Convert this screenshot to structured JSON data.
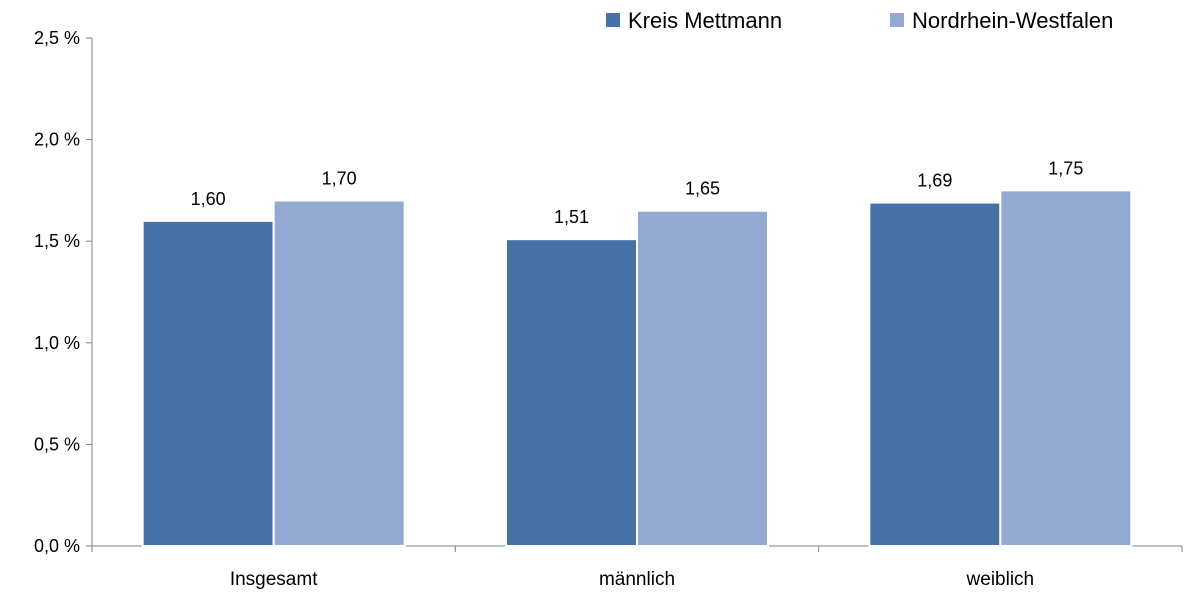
{
  "chart_data": {
    "type": "bar",
    "categories": [
      "Insgesamt",
      "männlich",
      "weiblich"
    ],
    "series": [
      {
        "name": "Kreis Mettmann",
        "color": "#4672A8",
        "values": [
          1.6,
          1.51,
          1.69
        ],
        "value_labels": [
          "1,60",
          "1,51",
          "1,69"
        ]
      },
      {
        "name": "Nordrhein-Westfalen",
        "color": "#94A9D1",
        "values": [
          1.7,
          1.65,
          1.75
        ],
        "value_labels": [
          "1,70",
          "1,65",
          "1,75"
        ]
      }
    ],
    "ylim": [
      0,
      2.5
    ],
    "yticks": [
      0,
      0.5,
      1.0,
      1.5,
      2.0,
      2.5
    ],
    "ytick_labels": [
      "0,0 %",
      "0,5 %",
      "1,0 %",
      "1,5 %",
      "2,0 %",
      "2,5 %"
    ],
    "grid": false,
    "legend_position": "top-right",
    "title": "",
    "xlabel": "",
    "ylabel": ""
  }
}
